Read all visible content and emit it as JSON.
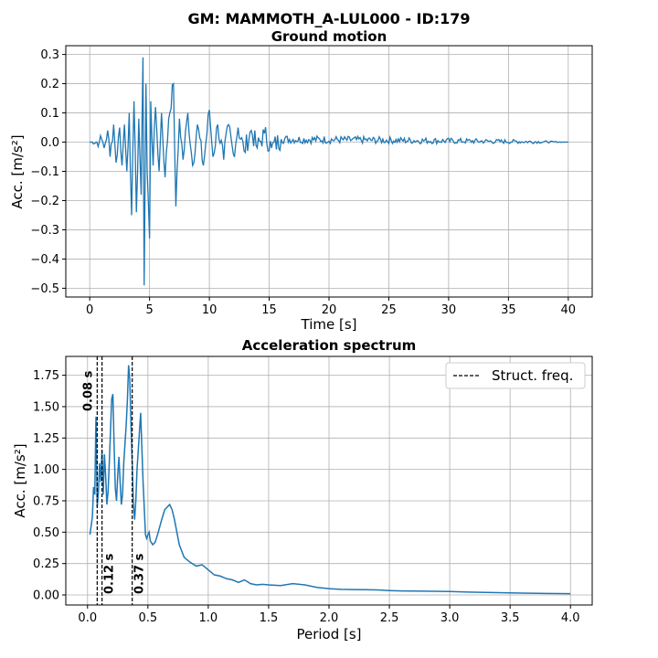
{
  "figure": {
    "suptitle": "GM: MAMMOTH_A-LUL000 - ID:179"
  },
  "chart_data": [
    {
      "type": "line",
      "title": "Ground motion",
      "xlabel": "Time [s]",
      "ylabel": "Acc. [m/s²]",
      "xlim": [
        -2,
        42
      ],
      "ylim": [
        -0.53,
        0.33
      ],
      "xticks": [
        0,
        5,
        10,
        15,
        20,
        25,
        30,
        35,
        40
      ],
      "yticks": [
        -0.5,
        -0.4,
        -0.3,
        -0.2,
        -0.1,
        0.0,
        0.1,
        0.2,
        0.3
      ],
      "grid": true,
      "color": "#1f77b4",
      "peaks": [
        [
          0.0,
          0.0
        ],
        [
          0.8,
          0.0
        ],
        [
          1.0,
          0.01
        ],
        [
          1.2,
          -0.02
        ],
        [
          1.5,
          0.04
        ],
        [
          1.7,
          -0.05
        ],
        [
          2.0,
          0.06
        ],
        [
          2.2,
          -0.07
        ],
        [
          2.5,
          0.05
        ],
        [
          2.7,
          -0.08
        ],
        [
          2.9,
          0.06
        ],
        [
          3.1,
          -0.1
        ],
        [
          3.3,
          0.1
        ],
        [
          3.5,
          -0.25
        ],
        [
          3.7,
          0.14
        ],
        [
          3.9,
          -0.24
        ],
        [
          4.1,
          0.08
        ],
        [
          4.3,
          -0.18
        ],
        [
          4.45,
          0.29
        ],
        [
          4.55,
          -0.49
        ],
        [
          4.7,
          0.2
        ],
        [
          4.8,
          -0.1
        ],
        [
          5.0,
          -0.33
        ],
        [
          5.1,
          0.14
        ],
        [
          5.3,
          -0.08
        ],
        [
          5.5,
          0.12
        ],
        [
          5.8,
          -0.1
        ],
        [
          6.0,
          0.1
        ],
        [
          6.3,
          -0.12
        ],
        [
          6.6,
          0.08
        ],
        [
          7.0,
          0.2
        ],
        [
          7.2,
          -0.22
        ],
        [
          7.5,
          0.08
        ],
        [
          7.8,
          -0.06
        ],
        [
          8.2,
          0.1
        ],
        [
          8.6,
          -0.08
        ],
        [
          9.0,
          0.06
        ],
        [
          9.5,
          -0.08
        ],
        [
          10.0,
          0.11
        ],
        [
          10.3,
          -0.05
        ],
        [
          10.7,
          0.06
        ],
        [
          11.2,
          -0.06
        ],
        [
          11.6,
          0.06
        ],
        [
          12.0,
          -0.04
        ],
        [
          12.4,
          0.05
        ],
        [
          12.9,
          -0.03
        ],
        [
          13.5,
          0.04
        ],
        [
          14.0,
          -0.02
        ],
        [
          14.6,
          0.03
        ],
        [
          15.2,
          -0.02
        ],
        [
          16.0,
          0.01
        ],
        [
          40.0,
          0.0
        ]
      ],
      "noise_amplitude": [
        [
          0,
          0.0
        ],
        [
          1,
          0.01
        ],
        [
          15,
          0.015
        ],
        [
          30,
          0.01
        ],
        [
          37,
          0.006
        ],
        [
          40,
          0.0
        ]
      ]
    },
    {
      "type": "line",
      "title": "Acceleration spectrum",
      "xlabel": "Period [s]",
      "ylabel": "Acc. [m/s²]",
      "xlim": [
        -0.18,
        4.18
      ],
      "ylim": [
        -0.08,
        1.9
      ],
      "xticks": [
        0.0,
        0.5,
        1.0,
        1.5,
        2.0,
        2.5,
        3.0,
        3.5,
        4.0
      ],
      "yticks": [
        0.0,
        0.25,
        0.5,
        0.75,
        1.0,
        1.25,
        1.5,
        1.75
      ],
      "xtick_labels": [
        "0.0",
        "0.5",
        "1.0",
        "1.5",
        "2.0",
        "2.5",
        "3.0",
        "3.5",
        "4.0"
      ],
      "ytick_labels": [
        "0.00",
        "0.25",
        "0.50",
        "0.75",
        "1.00",
        "1.25",
        "1.50",
        "1.75"
      ],
      "grid": true,
      "color": "#1f77b4",
      "x": [
        0.02,
        0.04,
        0.05,
        0.06,
        0.07,
        0.075,
        0.08,
        0.09,
        0.1,
        0.11,
        0.12,
        0.13,
        0.14,
        0.15,
        0.16,
        0.17,
        0.18,
        0.19,
        0.2,
        0.21,
        0.22,
        0.23,
        0.24,
        0.25,
        0.26,
        0.27,
        0.28,
        0.29,
        0.3,
        0.31,
        0.32,
        0.33,
        0.34,
        0.35,
        0.36,
        0.37,
        0.38,
        0.39,
        0.4,
        0.41,
        0.42,
        0.44,
        0.46,
        0.48,
        0.49,
        0.5,
        0.51,
        0.52,
        0.54,
        0.56,
        0.58,
        0.6,
        0.62,
        0.64,
        0.66,
        0.68,
        0.7,
        0.72,
        0.74,
        0.76,
        0.8,
        0.85,
        0.9,
        0.95,
        1.0,
        1.05,
        1.1,
        1.15,
        1.2,
        1.25,
        1.3,
        1.35,
        1.4,
        1.45,
        1.5,
        1.6,
        1.7,
        1.8,
        1.9,
        2.0,
        2.1,
        2.2,
        2.3,
        2.4,
        2.5,
        2.6,
        2.8,
        3.0,
        3.2,
        3.4,
        3.6,
        3.8,
        4.0
      ],
      "y": [
        0.48,
        0.62,
        0.86,
        0.8,
        1.42,
        1.1,
        0.7,
        0.82,
        1.05,
        0.9,
        1.15,
        0.8,
        1.12,
        0.95,
        0.72,
        0.82,
        1.05,
        1.3,
        1.56,
        1.6,
        1.2,
        0.85,
        0.75,
        0.95,
        1.1,
        0.9,
        0.72,
        0.8,
        1.05,
        1.2,
        1.35,
        1.55,
        1.83,
        1.72,
        1.35,
        1.05,
        0.72,
        0.6,
        0.75,
        1.0,
        1.15,
        1.45,
        0.9,
        0.48,
        0.45,
        0.48,
        0.5,
        0.43,
        0.4,
        0.42,
        0.48,
        0.55,
        0.62,
        0.68,
        0.7,
        0.72,
        0.68,
        0.6,
        0.5,
        0.4,
        0.3,
        0.26,
        0.23,
        0.24,
        0.2,
        0.16,
        0.15,
        0.13,
        0.12,
        0.1,
        0.12,
        0.09,
        0.08,
        0.085,
        0.08,
        0.075,
        0.09,
        0.08,
        0.06,
        0.05,
        0.045,
        0.043,
        0.042,
        0.04,
        0.035,
        0.032,
        0.03,
        0.027,
        0.022,
        0.018,
        0.015,
        0.012,
        0.01
      ],
      "vlines": [
        {
          "x": 0.08,
          "label": "0.08 s",
          "label_pos": "top"
        },
        {
          "x": 0.12,
          "label": "0.12 s",
          "label_pos": "bottom"
        },
        {
          "x": 0.37,
          "label": "0.37 s",
          "label_pos": "bottom"
        }
      ],
      "legend": {
        "placement": "top-right",
        "entries": [
          "Struct. freq."
        ]
      }
    }
  ]
}
